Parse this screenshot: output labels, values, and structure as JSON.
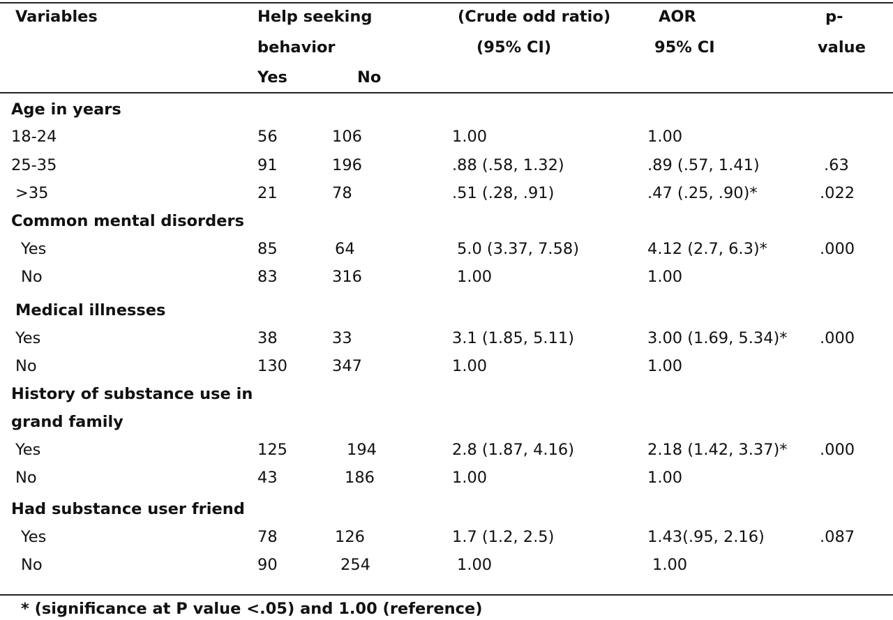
{
  "header": {
    "variables": "Variables",
    "help_seeking_line1": "Help seeking",
    "help_seeking_line2": "behavior",
    "yes": "Yes",
    "no": "No",
    "crude_line1": "(Crude odd ratio)",
    "crude_line2": "(95% CI)",
    "aor_line1": "AOR",
    "aor_line2": "95% CI",
    "p_line1": "p-",
    "p_line2": "value"
  },
  "sections": [
    {
      "title": "Age in years",
      "rows": [
        {
          "label": "18-24",
          "yes": "56",
          "no": "106",
          "cor": "1.00",
          "aor": "1.00",
          "p": ""
        },
        {
          "label": "25-35",
          "yes": "91",
          "no": "196",
          "cor": ".88 (.58, 1.32)",
          "aor": ".89 (.57, 1.41)",
          "p": ".63"
        },
        {
          "label": ">35",
          "yes": "21",
          "no": "78",
          "cor": ".51 (.28, .91)",
          "aor": ".47 (.25, .90)*",
          "p": ".022"
        }
      ]
    },
    {
      "title": "Common mental disorders",
      "rows": [
        {
          "label": "Yes",
          "yes": "85",
          "no": "64",
          "cor": "5.0 (3.37, 7.58)",
          "aor": "4.12 (2.7, 6.3)*",
          "p": ".000"
        },
        {
          "label": "No",
          "yes": "83",
          "no": "316",
          "cor": "1.00",
          "aor": "1.00",
          "p": ""
        }
      ]
    },
    {
      "title": "Medical illnesses",
      "rows": [
        {
          "label": "Yes",
          "yes": "38",
          "no": "33",
          "cor": "3.1 (1.85, 5.11)",
          "aor": "3.00 (1.69, 5.34)*",
          "p": ".000"
        },
        {
          "label": "No",
          "yes": "130",
          "no": "347",
          "cor": "1.00",
          "aor": "1.00",
          "p": ""
        }
      ]
    },
    {
      "title_line1": "History of  substance use in",
      "title_line2": "grand family",
      "rows": [
        {
          "label": "Yes",
          "yes": "125",
          "no": "194",
          "cor": "2.8 (1.87, 4.16)",
          "aor": "2.18 (1.42, 3.37)*",
          "p": ".000"
        },
        {
          "label": "No",
          "yes": "43",
          "no": "186",
          "cor": "1.00",
          "aor": "1.00",
          "p": ""
        }
      ]
    },
    {
      "title": "Had substance user friend",
      "rows": [
        {
          "label": "Yes",
          "yes": "78",
          "no": "126",
          "cor": "1.7 (1.2, 2.5)",
          "aor": "1.43(.95, 2.16)",
          "p": ".087"
        },
        {
          "label": "No",
          "yes": "90",
          "no": "254",
          "cor": "1.00",
          "aor": "1.00",
          "p": ""
        }
      ]
    }
  ],
  "footnote": "* (significance at P value <.05) and 1.00 (reference)"
}
